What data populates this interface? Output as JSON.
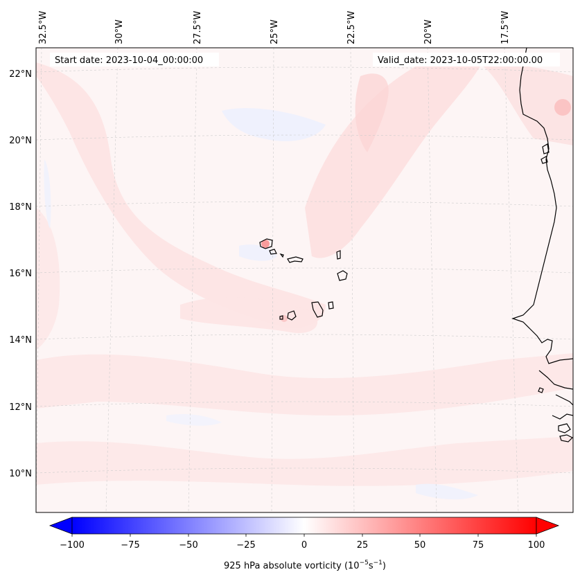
{
  "map": {
    "start_date_text": "Start date: 2023-10-04_00:00:00",
    "valid_date_text": "Valid_date: 2023-10-05T22:00:00.00",
    "field_colormap": "bwr",
    "coastline_color": "#000000",
    "gridline_color": "#cccccc"
  },
  "axes": {
    "lon_labels": [
      "32.5°W",
      "30°W",
      "27.5°W",
      "25°W",
      "22.5°W",
      "20°W",
      "17.5°W"
    ],
    "lat_labels": [
      "22°N",
      "20°N",
      "18°N",
      "16°N",
      "14°N",
      "12°N",
      "10°N"
    ]
  },
  "colorbar": {
    "ticks": [
      "−100",
      "−75",
      "−50",
      "−25",
      "0",
      "25",
      "50",
      "75",
      "100"
    ],
    "label_prefix": "925 hPa absolute vorticity (10",
    "label_exp1": "−5",
    "label_mid": "s",
    "label_exp2": "−1",
    "label_suffix": ")",
    "min_color": "#0000ff",
    "mid_color": "#ffffff",
    "max_color": "#ff0000"
  }
}
